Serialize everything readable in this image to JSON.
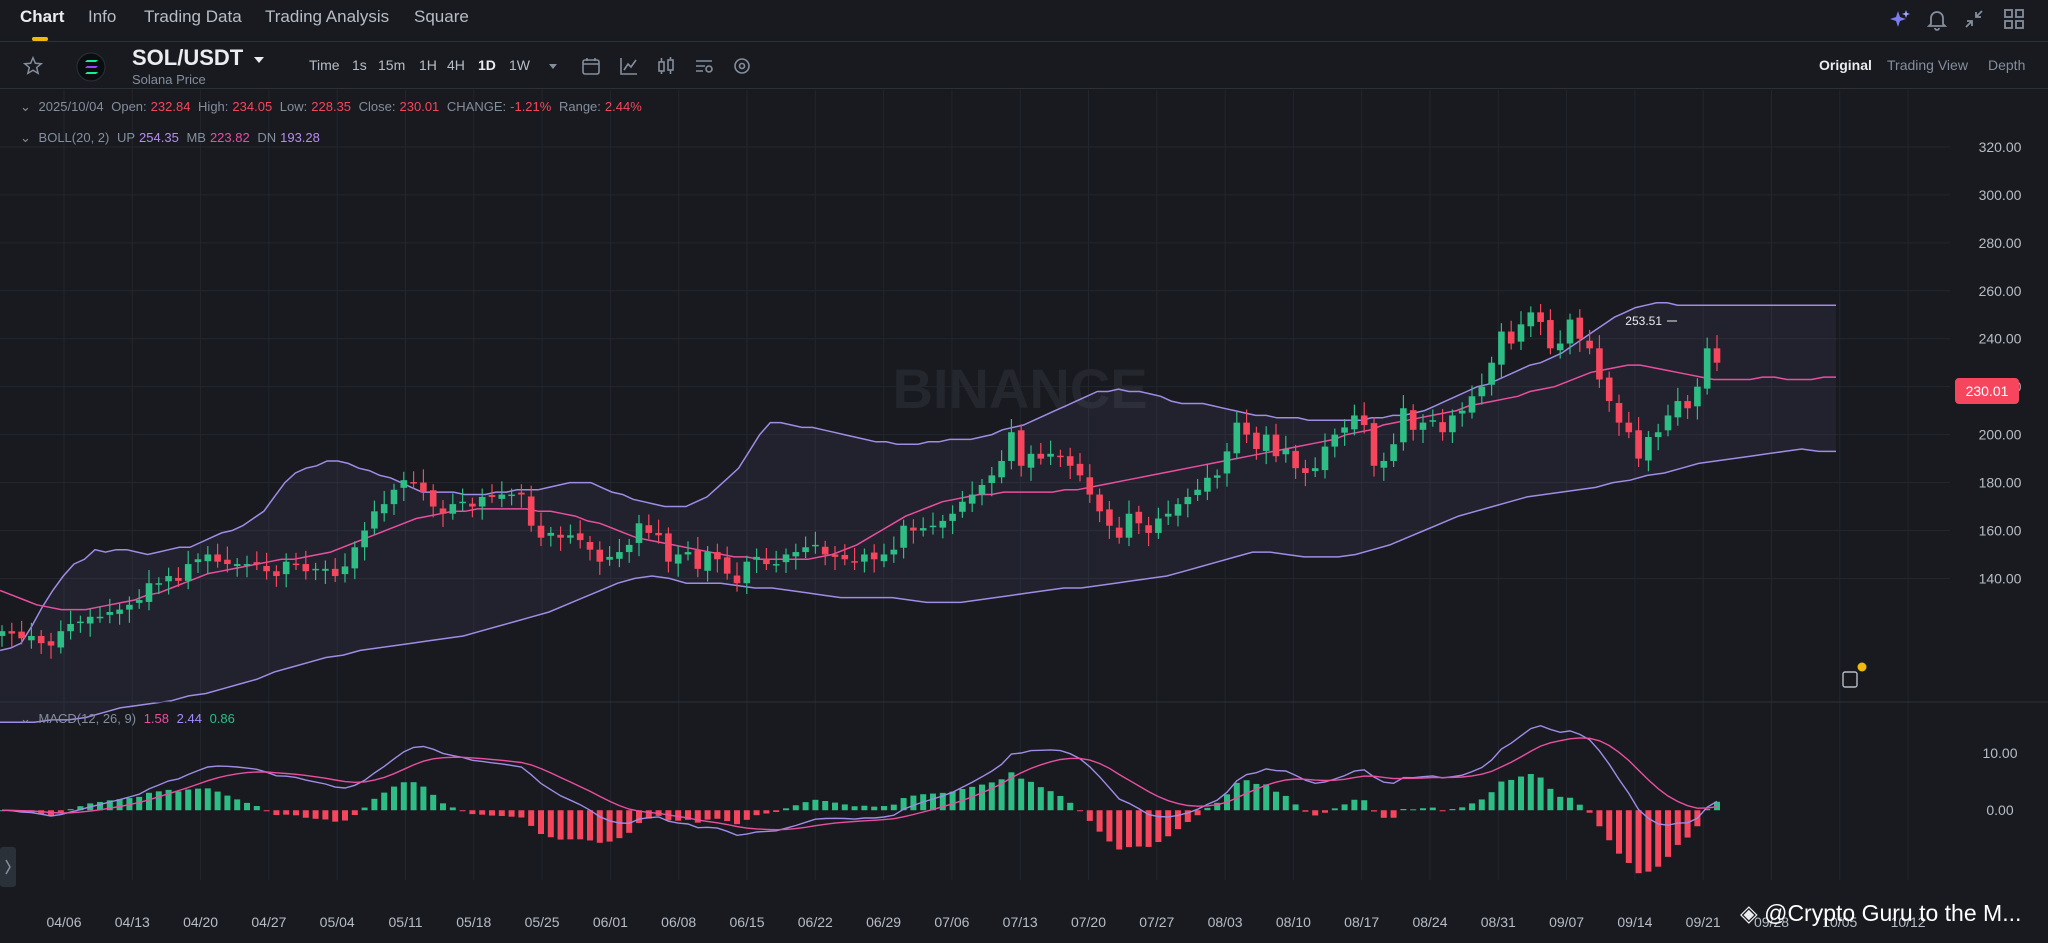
{
  "nav": {
    "tabs": [
      "Chart",
      "Info",
      "Trading Data",
      "Trading Analysis",
      "Square"
    ],
    "active_tab": "Chart",
    "icons": [
      "ai-sparkle-icon",
      "bell-icon",
      "collapse-icon",
      "layout-grid-icon"
    ]
  },
  "symbol": {
    "pair": "SOL/USDT",
    "subtitle": "Solana Price",
    "icons": [
      "star-icon",
      "solana-logo-icon",
      "caret-down-icon"
    ]
  },
  "toolbar": {
    "intervals": [
      "Time",
      "1s",
      "15m",
      "1H",
      "4H",
      "1D",
      "1W"
    ],
    "active_interval": "1D",
    "icons": [
      "more-intervals-icon",
      "calendar-icon",
      "indicator-icon",
      "candle-type-icon",
      "settings-list-icon",
      "gear-icon"
    ],
    "views": [
      "Original",
      "Trading View",
      "Depth"
    ],
    "active_view": "Original"
  },
  "ohlc": {
    "date": "2025/10/04",
    "open_label": "Open:",
    "open": "232.84",
    "high_label": "High:",
    "high": "234.05",
    "low_label": "Low:",
    "low": "228.35",
    "close_label": "Close:",
    "close": "230.01",
    "change_label": "CHANGE:",
    "change": "-1.21%",
    "range_label": "Range:",
    "range": "2.44%"
  },
  "boll": {
    "label": "BOLL(20, 2)",
    "up_label": "UP",
    "up": "254.35",
    "mb_label": "MB",
    "mb": "223.82",
    "dn_label": "DN",
    "dn": "193.28"
  },
  "macd": {
    "label": "MACD(12, 26, 9)",
    "v1": "1.58",
    "v2": "2.44",
    "v3": "0.86"
  },
  "watermark": "BINANCE",
  "overlay_text": "@Crypto Guru to the M...",
  "colors": {
    "up": "#2ebd85",
    "down": "#f6465d",
    "accent": "#f0b90b",
    "boll_band": "#a08ce6",
    "boll_mid": "#e94fa0",
    "macd_line": "#a08ce6",
    "signal_line": "#e94fa0"
  },
  "chart_data": [
    {
      "type": "candlestick",
      "title": "SOL/USDT",
      "indicator": "BOLL(20, 2)",
      "x_ticks": [
        "04/06",
        "04/13",
        "04/20",
        "04/27",
        "05/04",
        "05/11",
        "05/18",
        "05/25",
        "06/01",
        "06/08",
        "06/15",
        "06/22",
        "06/29",
        "07/06",
        "07/13",
        "07/20",
        "07/27",
        "08/03",
        "08/10",
        "08/17",
        "08/24",
        "08/31",
        "09/07",
        "09/14",
        "09/21",
        "09/28",
        "10/05",
        "10/12"
      ],
      "y_ticks": [
        "140.00",
        "160.00",
        "180.00",
        "200.00",
        "220.00",
        "240.00",
        "260.00",
        "280.00",
        "300.00",
        "320.00"
      ],
      "ylim": [
        126,
        330
      ],
      "last_price": "230.01",
      "high_marker": "253.51",
      "closes": [
        118,
        117,
        115,
        116,
        113,
        112,
        118,
        121,
        122,
        124,
        124,
        126,
        127,
        129,
        131,
        138,
        138,
        141,
        139,
        146,
        148,
        150,
        147,
        146,
        146,
        146,
        146,
        143,
        141,
        147,
        146,
        143,
        144,
        144,
        141,
        145,
        153,
        160,
        168,
        171,
        177,
        181,
        180,
        176,
        170,
        167,
        171,
        172,
        170,
        174,
        174,
        175,
        175,
        175,
        162,
        157,
        159,
        157,
        158,
        156,
        152,
        147,
        149,
        151,
        154,
        163,
        159,
        158,
        147,
        150,
        151,
        144,
        151,
        148,
        142,
        138,
        147,
        149,
        146,
        146,
        150,
        151,
        153,
        154,
        150,
        149,
        148,
        147,
        150,
        148,
        150,
        152,
        162,
        160,
        161,
        162,
        164,
        167,
        172,
        175,
        179,
        183,
        189,
        201,
        187,
        192,
        190,
        192,
        191,
        187,
        183,
        175,
        168,
        162,
        157,
        167,
        163,
        159,
        165,
        167,
        171,
        174,
        177,
        182,
        183,
        193,
        205,
        200,
        194,
        200,
        191,
        194,
        186,
        184,
        186,
        195,
        200,
        203,
        208,
        204,
        187,
        189,
        196,
        211,
        202,
        205,
        206,
        201,
        208,
        210,
        216,
        220,
        230,
        243,
        238,
        246,
        251,
        247,
        236,
        238,
        248,
        240,
        236,
        223,
        214,
        205,
        201,
        190,
        199,
        201,
        208,
        214,
        211,
        220,
        236,
        230
      ],
      "boll_up": [
        110,
        111,
        113,
        120,
        128,
        135,
        141,
        146,
        148,
        152,
        151,
        152,
        152,
        151,
        150,
        151,
        152,
        153,
        153,
        155,
        157,
        159,
        160,
        162,
        165,
        168,
        174,
        180,
        184,
        186,
        187,
        189,
        189,
        188,
        186,
        185,
        183,
        182,
        180,
        178,
        176,
        176,
        176,
        176,
        175,
        175,
        175,
        176,
        176,
        177,
        177,
        177,
        178,
        179,
        180,
        180,
        180,
        178,
        176,
        175,
        173,
        172,
        171,
        170,
        170,
        170,
        172,
        174,
        178,
        182,
        186,
        193,
        200,
        205,
        205,
        204,
        203,
        203,
        202,
        201,
        200,
        199,
        198,
        197,
        197,
        196,
        196,
        196,
        197,
        197,
        198,
        198,
        198,
        199,
        200,
        202,
        203,
        204,
        206,
        208,
        210,
        212,
        214,
        216,
        218,
        218,
        219,
        218,
        218,
        217,
        216,
        214,
        213,
        213,
        213,
        212,
        211,
        210,
        209,
        208,
        208,
        207,
        207,
        207,
        206,
        206,
        206,
        206,
        206,
        206,
        207,
        207,
        208,
        208,
        209,
        210,
        212,
        214,
        216,
        218,
        220,
        221,
        223,
        225,
        227,
        229,
        230,
        232,
        234,
        237,
        240,
        243,
        246,
        249,
        251,
        253,
        254,
        255,
        255,
        254,
        254,
        254,
        254,
        254,
        254,
        254,
        254,
        254,
        254,
        254,
        254,
        254,
        254,
        254,
        254
      ],
      "boll_mid": [
        135,
        133,
        131,
        129,
        128,
        127,
        127,
        127,
        128,
        129,
        130,
        131,
        133,
        134,
        136,
        138,
        140,
        142,
        143,
        144,
        145,
        146,
        147,
        148,
        148,
        149,
        150,
        151,
        153,
        155,
        157,
        159,
        161,
        163,
        165,
        166,
        167,
        168,
        168,
        169,
        169,
        169,
        169,
        169,
        168,
        168,
        167,
        166,
        164,
        163,
        161,
        159,
        157,
        156,
        155,
        154,
        153,
        152,
        151,
        150,
        149,
        149,
        148,
        148,
        148,
        148,
        148,
        149,
        150,
        152,
        154,
        157,
        160,
        163,
        166,
        168,
        170,
        172,
        173,
        174,
        175,
        175,
        176,
        176,
        176,
        176,
        176,
        177,
        177,
        178,
        179,
        180,
        181,
        182,
        183,
        184,
        185,
        186,
        187,
        188,
        189,
        190,
        191,
        192,
        193,
        194,
        195,
        196,
        197,
        198,
        200,
        201,
        202,
        204,
        205,
        206,
        207,
        208,
        209,
        210,
        212,
        213,
        214,
        215,
        216,
        218,
        219,
        220,
        222,
        224,
        226,
        227,
        228,
        229,
        229,
        228,
        227,
        226,
        225,
        224,
        223,
        223,
        223,
        223,
        224,
        224,
        223,
        223,
        223,
        224,
        224
      ],
      "boll_dn": [
        80,
        80,
        80,
        81,
        81,
        82,
        84,
        86,
        87,
        88,
        89,
        91,
        92,
        94,
        96,
        98,
        101,
        103,
        105,
        107,
        108,
        110,
        111,
        112,
        113,
        114,
        115,
        116,
        118,
        120,
        122,
        124,
        126,
        129,
        132,
        135,
        138,
        140,
        141,
        140,
        138,
        138,
        138,
        137,
        136,
        136,
        135,
        134,
        133,
        132,
        132,
        132,
        132,
        131,
        130,
        130,
        130,
        131,
        132,
        133,
        134,
        135,
        136,
        136,
        137,
        138,
        139,
        140,
        141,
        143,
        145,
        147,
        149,
        151,
        151,
        150,
        149,
        149,
        149,
        150,
        152,
        154,
        157,
        160,
        163,
        166,
        168,
        170,
        172,
        174,
        175,
        176,
        177,
        178,
        180,
        181,
        183,
        184,
        186,
        188,
        189,
        190,
        191,
        192,
        193,
        194,
        193,
        193
      ]
    },
    {
      "type": "macd",
      "title": "MACD(12, 26, 9)",
      "y_ticks": [
        "10.00",
        "0.00"
      ],
      "ylim": [
        -12.5,
        14.5
      ]
    }
  ]
}
